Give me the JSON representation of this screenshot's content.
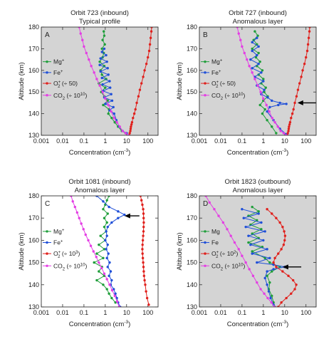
{
  "figure": {
    "axis_label_x": "Concentration (cm",
    "axis_label_x_unit_sup": "-3",
    "axis_label_x_close": ")",
    "axis_label_y": "Altitude (km)"
  },
  "chart_data": [
    {
      "type": "line",
      "panel_letter": "A",
      "title": "Orbit 723 (inbound)",
      "subtitle": "Typical profile",
      "xlabel": "Concentration (cm^-3)",
      "ylabel": "Altitude (km)",
      "xscale": "log",
      "xlim": [
        0.001,
        300
      ],
      "ylim": [
        130,
        180
      ],
      "xticks": [
        "0.001",
        "0.01",
        "0.1",
        "1",
        "10",
        "100"
      ],
      "yticks": [
        130,
        140,
        150,
        160,
        170,
        180
      ],
      "background": "#d4d4d4",
      "arrow": null,
      "series": [
        {
          "name": "Mg",
          "label_main": "Mg",
          "label_sup": "+",
          "label_sub": "",
          "label_scale": "",
          "label_scale_sup": "",
          "color": "#1f9e3a",
          "x": [
            0.85,
            0.9,
            0.75,
            0.95,
            0.7,
            0.85,
            0.75,
            0.55,
            0.9,
            0.6,
            0.7,
            1.1,
            0.5,
            1.0,
            0.65,
            0.9,
            1.3,
            0.8,
            1.5,
            1.4,
            2.0,
            2.8,
            4.0,
            6.0,
            9.0
          ],
          "y": [
            178,
            176,
            174,
            172,
            170,
            168,
            166,
            164,
            162,
            160,
            158,
            156,
            154,
            152,
            150,
            148,
            146,
            144,
            142,
            140,
            138,
            136,
            134,
            132,
            131
          ]
        },
        {
          "name": "Fe",
          "label_main": "Fe",
          "label_sup": "+",
          "label_sub": "",
          "label_scale": "",
          "label_scale_sup": "",
          "color": "#1f4fd8",
          "x": [
            0.9,
            0.7,
            1.1,
            0.6,
            1.2,
            0.55,
            1.3,
            0.6,
            1.4,
            0.7,
            1.6,
            0.75,
            1.7,
            0.8,
            1.9,
            0.9,
            2.1,
            1.0,
            2.4,
            1.6,
            2.6,
            3.3,
            4.5,
            6.5,
            10.0
          ],
          "y": [
            170,
            168.5,
            167,
            165.5,
            164,
            162.5,
            161,
            159.5,
            158,
            156.5,
            155,
            153.5,
            152,
            150.5,
            149,
            147.5,
            146,
            144.5,
            143,
            141.5,
            140,
            137,
            134,
            132,
            131
          ]
        },
        {
          "name": "O2+",
          "label_main": "O",
          "label_sup": "+",
          "label_sub": "2",
          "label_scale": "(÷ 50)",
          "label_scale_sup": "",
          "color": "#e0201c",
          "x": [
            150,
            145,
            135,
            125,
            115,
            100,
            85,
            70,
            60,
            50,
            42,
            36,
            30,
            26,
            23,
            20,
            18,
            17,
            16,
            15.5,
            15,
            14,
            13
          ],
          "y": [
            180,
            178,
            175,
            172,
            169,
            166,
            163,
            160,
            157,
            154,
            151,
            148,
            145,
            142,
            140,
            138,
            136,
            135,
            134,
            133,
            132,
            131,
            130
          ]
        },
        {
          "name": "CO2",
          "label_main": "CO",
          "label_sup": "",
          "label_sub": "2",
          "label_scale": "(÷ 10",
          "label_scale_sup": "10",
          "color": "#e43ee4",
          "x": [
            0.06,
            0.07,
            0.085,
            0.1,
            0.13,
            0.17,
            0.22,
            0.3,
            0.4,
            0.55,
            0.75,
            1.0,
            1.4,
            1.9,
            2.6,
            3.5,
            4.8,
            6.5,
            9.0,
            12.0
          ],
          "y": [
            180,
            177,
            174,
            171,
            168,
            165,
            162,
            159,
            156,
            153,
            150,
            147,
            144,
            141,
            138,
            136,
            134,
            132,
            131,
            130
          ]
        }
      ]
    },
    {
      "type": "line",
      "panel_letter": "B",
      "title": "Orbit 727 (inbound)",
      "subtitle": "Anomalous layer",
      "xlabel": "Concentration (cm^-3)",
      "ylabel": "Altitude (km)",
      "xscale": "log",
      "xlim": [
        0.001,
        300
      ],
      "ylim": [
        130,
        180
      ],
      "xticks": [
        "0.001",
        "0.01",
        "0.1",
        "1",
        "10",
        "100"
      ],
      "yticks": [
        130,
        140,
        150,
        160,
        170,
        180
      ],
      "background": "#d4d4d4",
      "arrow": {
        "x_start": 300,
        "x_end": 40,
        "y": 145
      },
      "series": [
        {
          "name": "Mg",
          "label_main": "Mg",
          "label_sup": "+",
          "label_sub": "",
          "label_scale": "",
          "label_scale_sup": "",
          "color": "#1f9e3a",
          "x": [
            0.4,
            0.55,
            0.35,
            0.5,
            0.3,
            0.6,
            0.45,
            0.7,
            0.5,
            0.9,
            0.6,
            1.0,
            0.8,
            1.3,
            1.1,
            1.6,
            1.0,
            0.7,
            1.2,
            0.9,
            1.5,
            2.5,
            4.0
          ],
          "y": [
            178,
            176,
            174,
            172,
            170,
            168,
            166,
            164,
            162,
            160,
            158,
            156,
            154,
            152,
            150,
            148,
            146,
            144,
            142,
            140,
            137,
            134,
            131
          ]
        },
        {
          "name": "Fe",
          "label_main": "Fe",
          "label_sup": "+",
          "label_sub": "",
          "label_scale": "",
          "label_scale_sup": "",
          "color": "#1f4fd8",
          "x": [
            0.5,
            0.3,
            0.6,
            0.3,
            0.5,
            0.25,
            0.6,
            0.3,
            0.8,
            0.4,
            1.0,
            0.5,
            1.1,
            0.8,
            1.6,
            2.5,
            6.0,
            12.0,
            5.0,
            2.0,
            1.5,
            3.0,
            6.0,
            12.0
          ],
          "y": [
            175,
            173,
            171,
            169,
            167,
            165,
            163,
            161,
            159,
            157,
            155,
            153,
            151,
            149,
            147.5,
            146,
            145,
            144.5,
            144,
            143,
            141,
            137,
            133,
            130.5
          ]
        },
        {
          "name": "O2+",
          "label_main": "O",
          "label_sup": "+",
          "label_sub": "2",
          "label_scale": "(÷ 50)",
          "label_scale_sup": "",
          "color": "#e0201c",
          "x": [
            150,
            145,
            135,
            125,
            115,
            100,
            85,
            70,
            60,
            50,
            42,
            36,
            30,
            26,
            23,
            20,
            18,
            17,
            16,
            15.5,
            15,
            14,
            13
          ],
          "y": [
            180,
            178,
            175,
            172,
            169,
            166,
            163,
            160,
            157,
            154,
            151,
            148,
            145,
            142,
            140,
            138,
            136,
            135,
            134,
            133,
            132,
            131,
            130
          ]
        },
        {
          "name": "CO2",
          "label_main": "CO",
          "label_sup": "",
          "label_sub": "2",
          "label_scale": "(÷ 10",
          "label_scale_sup": "10",
          "color": "#e43ee4",
          "x": [
            0.06,
            0.07,
            0.085,
            0.1,
            0.13,
            0.17,
            0.22,
            0.3,
            0.4,
            0.55,
            0.75,
            1.0,
            1.4,
            1.9,
            2.6,
            3.5,
            4.8,
            6.5,
            9.0,
            12.0
          ],
          "y": [
            180,
            177,
            174,
            171,
            168,
            165,
            162,
            159,
            156,
            153,
            150,
            147,
            144,
            141,
            138,
            136,
            134,
            132,
            131,
            130
          ]
        }
      ]
    },
    {
      "type": "line",
      "panel_letter": "C",
      "title": "Orbit 1081 (inbound)",
      "subtitle": "Anomalous layer",
      "xlabel": "Concentration (cm^-3)",
      "ylabel": "Altitude (km)",
      "xscale": "log",
      "xlim": [
        0.001,
        300
      ],
      "ylim": [
        130,
        180
      ],
      "xticks": [
        "0.001",
        "0.01",
        "0.1",
        "1",
        "10",
        "100"
      ],
      "yticks": [
        130,
        140,
        150,
        160,
        170,
        180
      ],
      "background": "#ffffff",
      "arrow": {
        "x_start": 40,
        "x_end": 8,
        "y": 171
      },
      "series": [
        {
          "name": "Mg",
          "label_main": "Mg",
          "label_sup": "+",
          "label_sub": "",
          "label_scale": "",
          "label_scale_sup": "",
          "color": "#1f9e3a",
          "x": [
            1.5,
            1.2,
            1.0,
            0.8,
            1.3,
            0.9,
            1.2,
            0.9,
            1.1,
            0.6,
            1.0,
            0.5,
            0.9,
            0.4,
            0.8,
            0.3,
            0.7,
            0.5,
            0.9,
            0.4,
            0.8,
            1.2,
            1.5,
            2.0,
            3.0
          ],
          "y": [
            180,
            178,
            176,
            174,
            172,
            170,
            168,
            166,
            164,
            162,
            160,
            158,
            156,
            154,
            152,
            150,
            148,
            146,
            144,
            142,
            140,
            138,
            136,
            134,
            132
          ]
        },
        {
          "name": "Fe",
          "label_main": "Fe",
          "label_sup": "+",
          "label_sub": "",
          "label_scale": "",
          "label_scale_sup": "",
          "color": "#1f4fd8",
          "x": [
            0.4,
            0.8,
            1.5,
            4.0,
            8.0,
            4.0,
            2.0,
            1.3,
            1.1,
            1.2,
            1.0,
            1.3,
            1.1,
            1.4,
            1.2,
            1.6,
            1.3,
            1.8,
            1.5,
            2.0,
            1.8,
            2.5,
            3.0,
            3.5,
            4.0,
            5.0
          ],
          "y": [
            180,
            177.5,
            175,
            173,
            171.5,
            170,
            168,
            166,
            164,
            162,
            160,
            158,
            156,
            154,
            152,
            150,
            148,
            146,
            144,
            142,
            140,
            138,
            136,
            134,
            132,
            130
          ]
        },
        {
          "name": "O2+",
          "label_main": "O",
          "label_sup": "+",
          "label_sub": "2",
          "label_scale": "(÷ 10",
          "label_scale_sup": "3",
          "color": "#e0201c",
          "x": [
            45,
            50,
            55,
            60,
            62,
            63,
            64,
            63,
            62,
            60,
            58,
            56,
            55,
            56,
            58,
            60,
            62,
            64,
            66,
            70,
            75,
            82,
            92,
            110
          ],
          "y": [
            180,
            178,
            176,
            174,
            172,
            170,
            168,
            166,
            164,
            162,
            160,
            158,
            156,
            154,
            152,
            150,
            148,
            146,
            144,
            142,
            140,
            137,
            134,
            131
          ]
        },
        {
          "name": "CO2",
          "label_main": "CO",
          "label_sup": "",
          "label_sub": "2",
          "label_scale": "(÷ 10",
          "label_scale_sup": "10",
          "color": "#e43ee4",
          "x": [
            0.025,
            0.03,
            0.038,
            0.048,
            0.06,
            0.075,
            0.095,
            0.12,
            0.16,
            0.21,
            0.28,
            0.38,
            0.5,
            0.68,
            0.9,
            1.2,
            1.6,
            2.1,
            2.8,
            3.6,
            4.5
          ],
          "y": [
            180,
            177.5,
            175,
            172.5,
            170,
            167.5,
            165,
            162.5,
            160,
            157.5,
            155,
            152.5,
            150,
            147.5,
            145,
            142.5,
            140,
            137.5,
            135,
            132.5,
            130
          ]
        }
      ]
    },
    {
      "type": "line",
      "panel_letter": "D",
      "title": "Orbit 1823 (outbound)",
      "subtitle": "Anomalous layer",
      "xlabel": "Concentration (cm^-3)",
      "ylabel": "Altitude (km)",
      "xscale": "log",
      "xlim": [
        0.001,
        300
      ],
      "ylim": [
        130,
        180
      ],
      "xticks": [
        "0.001",
        "0.01",
        "0.1",
        "1",
        "10",
        "100"
      ],
      "yticks": [
        130,
        140,
        150,
        160,
        170,
        180
      ],
      "background": "#d4d4d4",
      "background_top_band": [
        177,
        180
      ],
      "arrow": {
        "x_start": 60,
        "x_end": 8,
        "y": 148
      },
      "series": [
        {
          "name": "Mg",
          "label_main": "Mg",
          "label_sup": "",
          "label_sub": "",
          "label_scale": "",
          "label_scale_sup": "",
          "color": "#1f9e3a",
          "x": [
            0.3,
            0.6,
            0.2,
            0.5,
            0.25,
            0.8,
            0.3,
            0.6,
            0.2,
            0.9,
            0.3,
            1.2,
            2.0,
            6.0,
            2.5,
            1.5,
            2.0,
            1.8,
            2.5,
            3.0,
            3.5
          ],
          "y": [
            175,
            173,
            171,
            169,
            167,
            165,
            163,
            161,
            159,
            157,
            155,
            152,
            150,
            148,
            146,
            144,
            141,
            138,
            135,
            132,
            130
          ]
        },
        {
          "name": "Fe",
          "label_main": "Fe",
          "label_sup": "",
          "label_sub": "",
          "label_scale": "",
          "label_scale_sup": "",
          "color": "#1f4fd8",
          "x": [
            0.1,
            0.6,
            0.12,
            0.8,
            0.15,
            1.2,
            0.2,
            1.0,
            0.25,
            1.5,
            0.3,
            2.0,
            0.5,
            3.0,
            10.0,
            3.0,
            1.5,
            1.2,
            1.5,
            1.8,
            2.2,
            3.0
          ],
          "y": [
            174,
            172,
            170,
            168,
            166,
            164,
            162,
            160,
            158,
            156,
            154,
            152,
            150,
            149,
            148,
            147,
            146,
            143,
            140,
            137,
            134,
            131
          ]
        },
        {
          "name": "O2+",
          "label_main": "O",
          "label_sup": "+",
          "label_sub": "2",
          "label_scale": "(÷ 10",
          "label_scale_sup": "2",
          "color": "#e0201c",
          "x": [
            1.5,
            2.5,
            4.0,
            6.0,
            8.0,
            9.5,
            10.5,
            10.0,
            9.0,
            7.0,
            5.0,
            3.5,
            3.0,
            4.0,
            8.0,
            15,
            25,
            35,
            30,
            20,
            12,
            7.0,
            5.0
          ],
          "y": [
            174,
            172,
            170,
            168,
            166,
            164,
            162,
            160,
            158,
            156,
            154,
            152,
            150,
            148,
            146,
            144,
            142,
            140,
            138,
            136,
            134,
            132,
            130
          ]
        },
        {
          "name": "CO2",
          "label_main": "CO",
          "label_sup": "",
          "label_sub": "2",
          "label_scale": "(÷ 10",
          "label_scale_sup": "10",
          "color": "#e43ee4",
          "x": [
            0.002,
            0.003,
            0.005,
            0.008,
            0.013,
            0.02,
            0.03,
            0.045,
            0.07,
            0.1,
            0.15,
            0.22,
            0.33,
            0.5,
            0.75,
            1.1,
            1.6,
            2.4,
            3.4
          ],
          "y": [
            180,
            177,
            174,
            171,
            168,
            165,
            162,
            159,
            156,
            153,
            150,
            147,
            144,
            141,
            138,
            136,
            134,
            132,
            130
          ]
        }
      ]
    }
  ]
}
